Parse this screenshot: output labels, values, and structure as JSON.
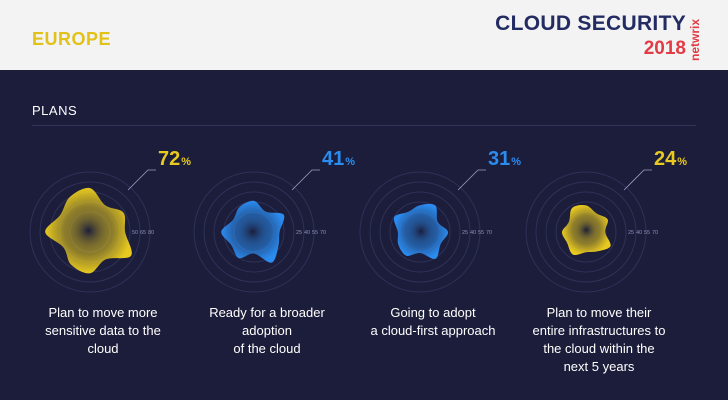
{
  "header": {
    "region": "EUROPE",
    "brand_title": "CLOUD SECURITY",
    "brand_year": "2018",
    "brand_logo_text": "netwrix"
  },
  "section_title": "PLANS",
  "colors": {
    "yellow": "#e8c91f",
    "blue": "#2b8cf0",
    "background": "#1b1d3a",
    "header_bg": "#f3f3f3",
    "brand_navy": "#232b63",
    "brand_red": "#e23b45"
  },
  "chart_data": [
    {
      "type": "radial",
      "value": 72,
      "value_label": "72",
      "unit": "%",
      "color": "yellow",
      "description": "Plan to move more\nsensitive data to the\ncloud",
      "scale_labels": [
        "50",
        "65",
        "80"
      ]
    },
    {
      "type": "radial",
      "value": 41,
      "value_label": "41",
      "unit": "%",
      "color": "blue",
      "description": "Ready for a broader\nadoption\nof the cloud",
      "scale_labels": [
        "25",
        "40",
        "55",
        "70"
      ]
    },
    {
      "type": "radial",
      "value": 31,
      "value_label": "31",
      "unit": "%",
      "color": "blue",
      "description": "Going to adopt\na cloud-first approach",
      "scale_labels": [
        "25",
        "40",
        "55",
        "70"
      ]
    },
    {
      "type": "radial",
      "value": 24,
      "value_label": "24",
      "unit": "%",
      "color": "yellow",
      "description": "Plan to move their\nentire infrastructures to\nthe cloud within the\nnext 5 years",
      "scale_labels": [
        "25",
        "40",
        "55",
        "70"
      ]
    }
  ]
}
